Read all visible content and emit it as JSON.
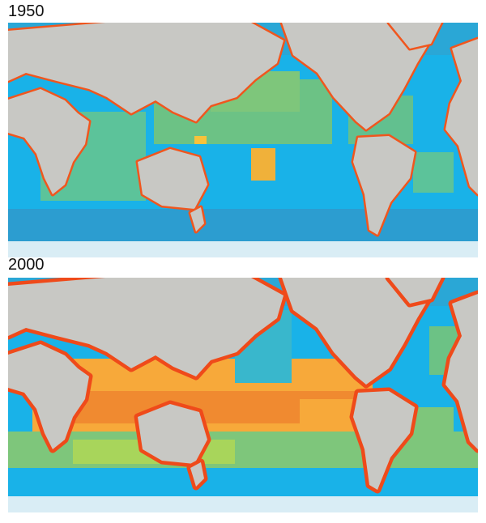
{
  "panels": [
    {
      "label": "1950"
    },
    {
      "label": "2000"
    }
  ]
}
